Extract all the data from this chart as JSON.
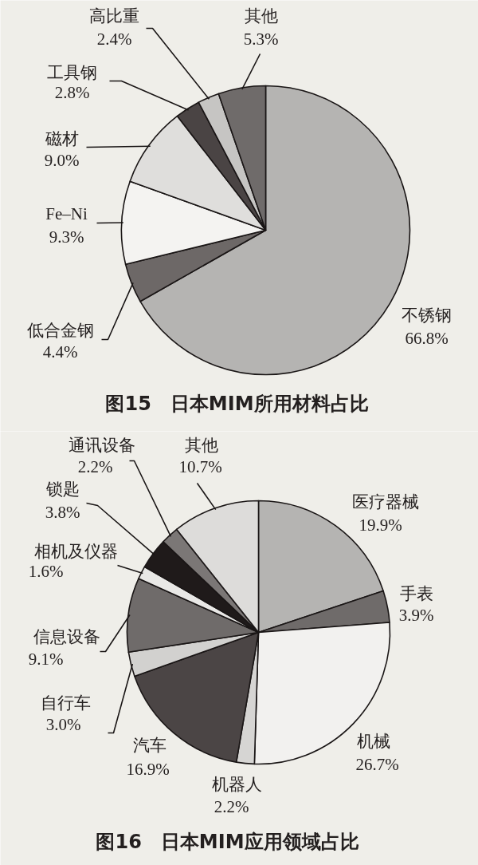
{
  "chart_data": [
    {
      "type": "pie",
      "title": "图15　日本MIM所用材料占比",
      "categories": [
        "不锈钢",
        "低合金钢",
        "Fe–Ni",
        "磁材",
        "工具钢",
        "高比重",
        "其他"
      ],
      "values": [
        66.8,
        4.4,
        9.3,
        9.0,
        2.8,
        2.4,
        5.3
      ],
      "value_labels": [
        "66.8%",
        "4.4%",
        "9.3%",
        "9.0%",
        "2.8%",
        "2.4%",
        "5.3%"
      ],
      "colors": [
        "#b5b4b2",
        "#6d6867",
        "#f4f3f1",
        "#dfdedc",
        "#4a4444",
        "#c6c5c3",
        "#6f6b6a"
      ]
    },
    {
      "type": "pie",
      "title": "图16　日本MIM应用领域占比",
      "categories": [
        "医疗器械",
        "手表",
        "机械",
        "机器人",
        "汽车",
        "自行车",
        "信息设备",
        "相机及仪器",
        "锁匙",
        "通讯设备",
        "其他"
      ],
      "values": [
        19.9,
        3.9,
        26.7,
        2.2,
        16.9,
        3.0,
        9.1,
        1.6,
        3.8,
        2.2,
        10.7
      ],
      "value_labels": [
        "19.9%",
        "3.9%",
        "26.7%",
        "2.2%",
        "16.9%",
        "3.0%",
        "9.1%",
        "1.6%",
        "3.8%",
        "2.2%",
        "10.7%"
      ],
      "colors": [
        "#b5b4b2",
        "#6f6b6a",
        "#f2f1ef",
        "#d6d5d3",
        "#4b4545",
        "#d2d1cf",
        "#6f6b6a",
        "#e9e8e6",
        "#1f1a1a",
        "#7b7776",
        "#dddcda"
      ]
    }
  ]
}
